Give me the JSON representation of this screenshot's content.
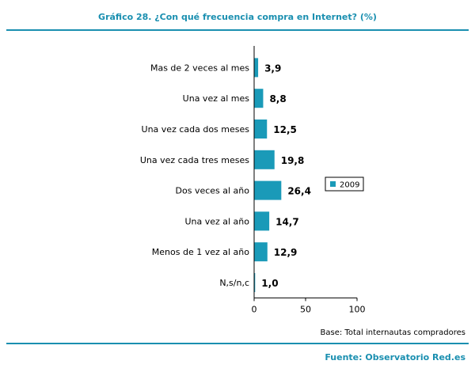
{
  "title": "Gráfico 28. ¿Con qué frecuencia compra en Internet? (%)",
  "base_note": "Base: Total internautas compradores",
  "source": "Fuente: Observatorio Red.es",
  "colors": {
    "accent": "#1a8fb0",
    "bar": "#1a9ab8"
  },
  "chart_data": {
    "type": "bar",
    "orientation": "horizontal",
    "categories": [
      "Mas de 2 veces al mes",
      "Una vez al mes",
      "Una vez cada dos meses",
      "Una vez cada tres meses",
      "Dos veces al año",
      "Una vez al año",
      "Menos de 1 vez al año",
      "N,s/n,c"
    ],
    "series": [
      {
        "name": "2009",
        "values": [
          3.9,
          8.8,
          12.5,
          19.8,
          26.4,
          14.7,
          12.9,
          1.0
        ],
        "labels": [
          "3,9",
          "8,8",
          "12,5",
          "19,8",
          "26,4",
          "14,7",
          "12,9",
          "1,0"
        ]
      }
    ],
    "xlim": [
      0,
      100
    ],
    "xticks": [
      0,
      50,
      100
    ],
    "grid": false,
    "legend": "right"
  }
}
